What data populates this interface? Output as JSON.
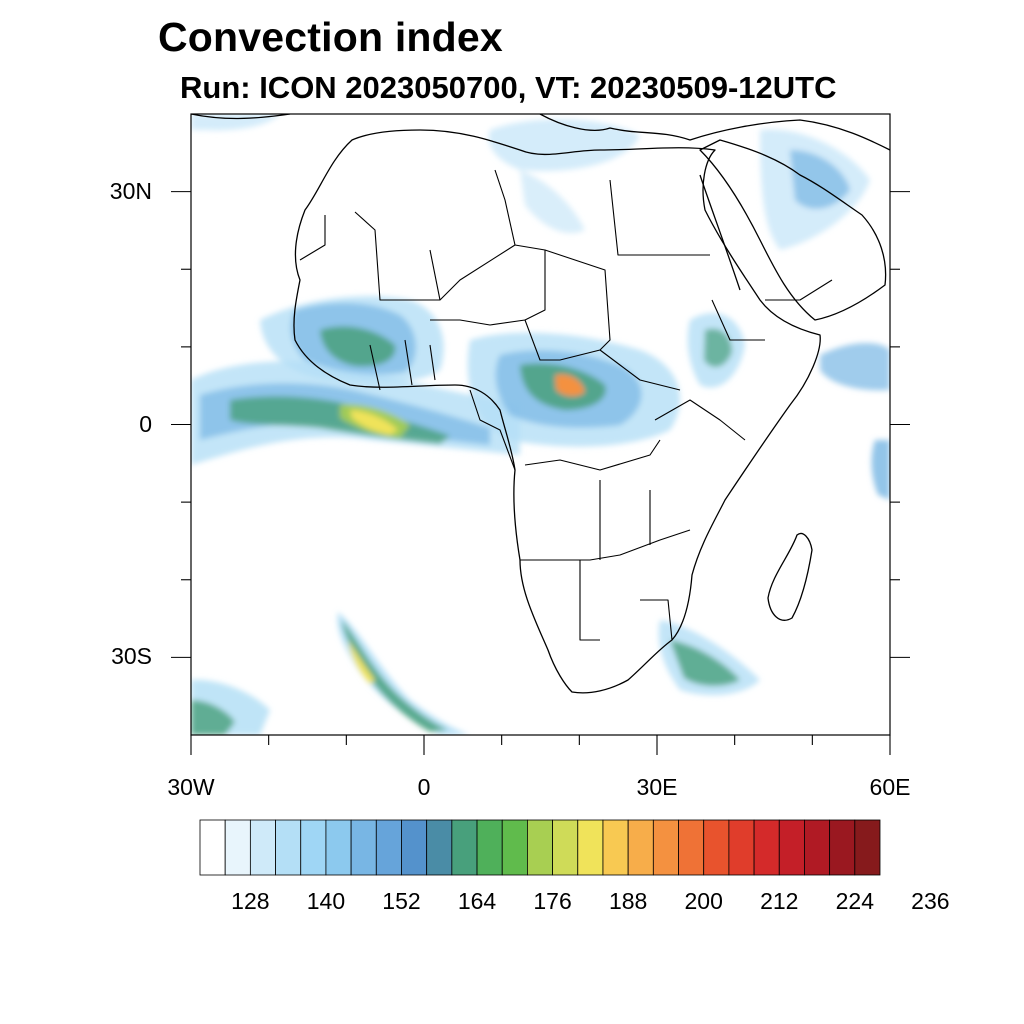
{
  "header": {
    "title": "Convection index",
    "subtitle": "Run: ICON 2023050700,  VT: 20230509-12UTC"
  },
  "axes": {
    "lat_labels": [
      {
        "text": "30N",
        "lat": 30
      },
      {
        "text": "0",
        "lat": 0
      },
      {
        "text": "30S",
        "lat": -30
      }
    ],
    "lon_labels": [
      {
        "text": "30W",
        "lon": -30
      },
      {
        "text": "0",
        "lon": 0
      },
      {
        "text": "30E",
        "lon": 30
      },
      {
        "text": "60E",
        "lon": 60
      }
    ],
    "lon_range": [
      -30,
      60
    ],
    "lat_range": [
      -40,
      40
    ]
  },
  "colorbar": {
    "colors": [
      "#ffffff",
      "#e8f5fc",
      "#cfeaf9",
      "#b4dff6",
      "#9fd6f5",
      "#8cc9ee",
      "#78b6e4",
      "#66a4da",
      "#5492cc",
      "#4a8ca6",
      "#48a07c",
      "#4fb05a",
      "#60bb4c",
      "#a8cf52",
      "#cfdb58",
      "#f0e35a",
      "#f8c952",
      "#f7ad4a",
      "#f49140",
      "#ef7236",
      "#e8532d",
      "#e03d2b",
      "#d42a2a",
      "#c41f28",
      "#b01a24",
      "#9a1820",
      "#861a1c"
    ],
    "tick_labels": [
      "128",
      "140",
      "152",
      "164",
      "176",
      "188",
      "200",
      "212",
      "224",
      "236"
    ]
  },
  "legend_note": ""
}
